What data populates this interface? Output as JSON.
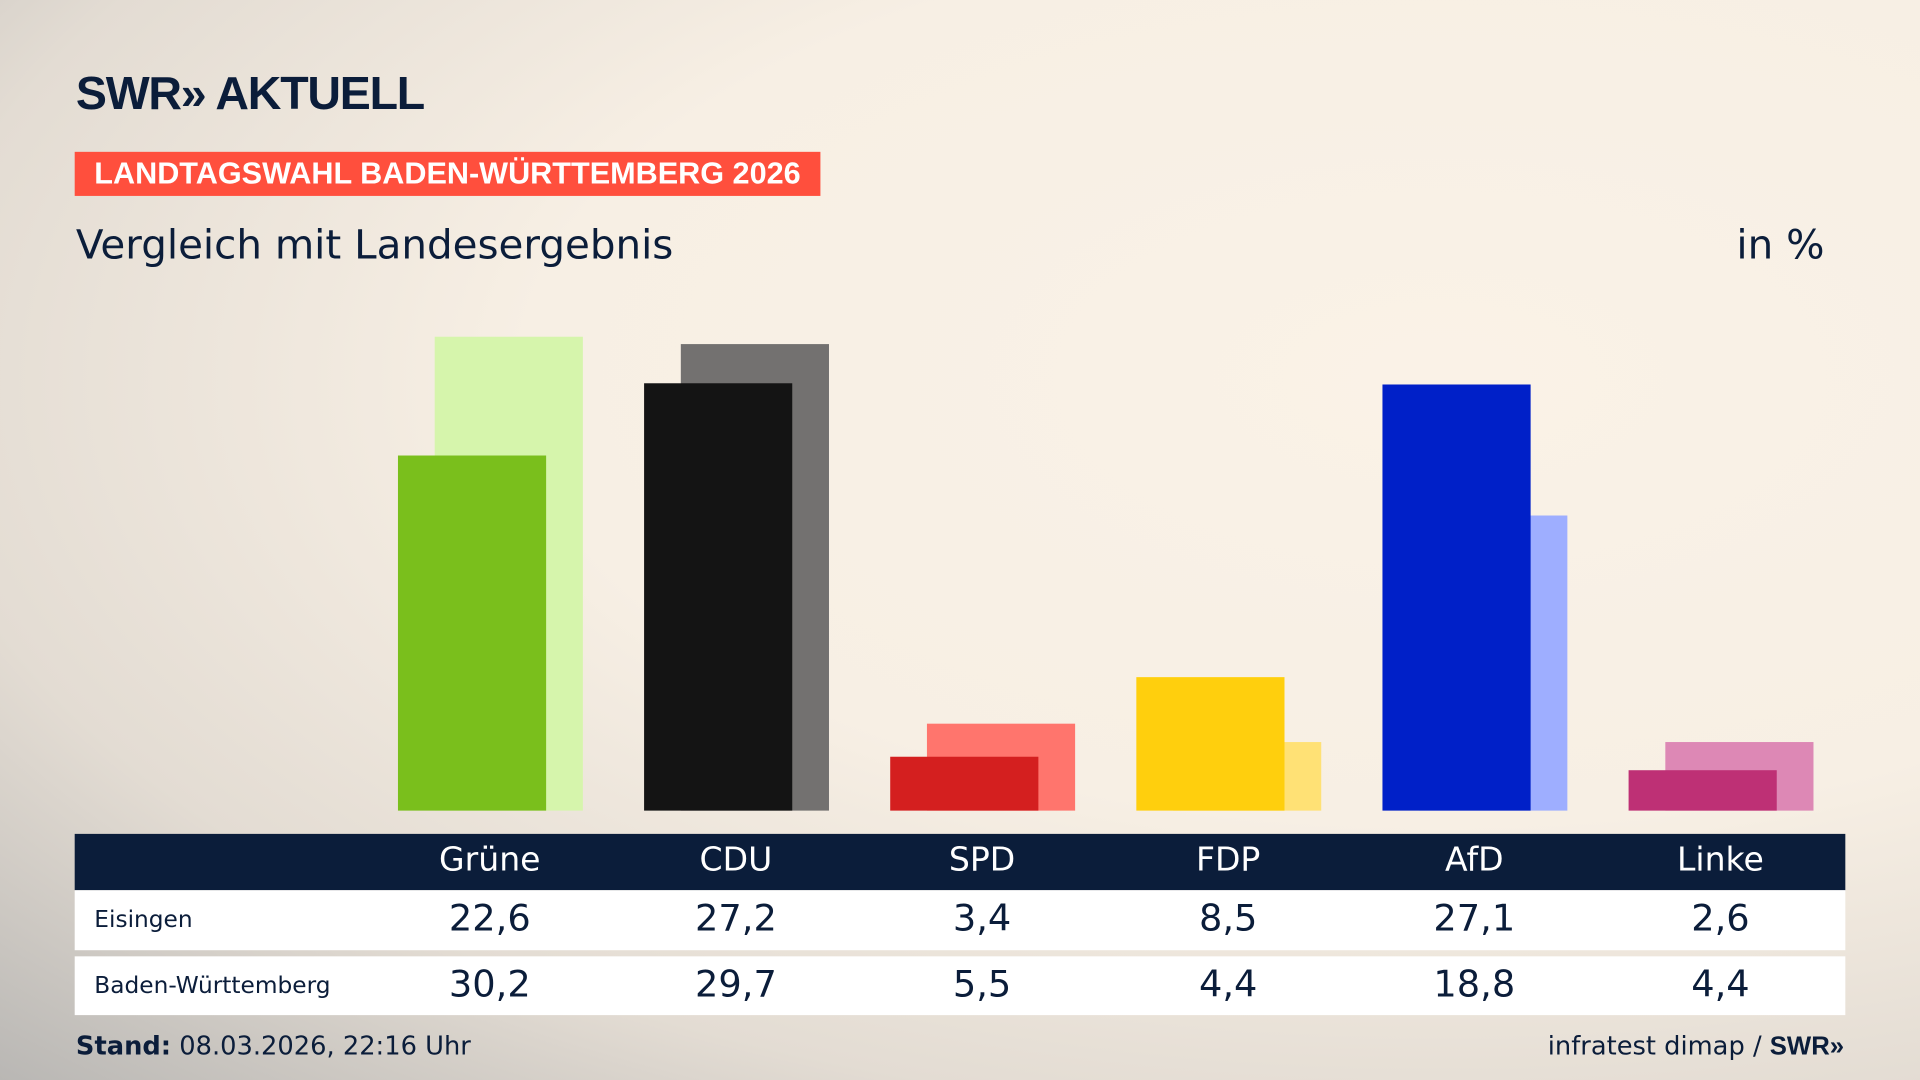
{
  "header": {
    "logo": "SWR» AKTUELL",
    "badge": "LANDTAGSWAHL BADEN-WÜRTTEMBERG 2026",
    "subtitle": "Vergleich mit Landesergebnis",
    "unit": "in %"
  },
  "chart_data": {
    "type": "bar",
    "categories": [
      "Grüne",
      "CDU",
      "SPD",
      "FDP",
      "AfD",
      "Linke"
    ],
    "series": [
      {
        "name": "Eisingen",
        "values": [
          22.6,
          27.2,
          3.4,
          8.5,
          27.1,
          2.6
        ],
        "display": [
          "22,6",
          "27,2",
          "3,4",
          "8,5",
          "27,1",
          "2,6"
        ],
        "colors": [
          "#7abf1c",
          "#141414",
          "#d41f1f",
          "#ffcf0d",
          "#0020c8",
          "#be3075"
        ]
      },
      {
        "name": "Baden-Württemberg",
        "values": [
          30.2,
          29.7,
          5.5,
          4.4,
          18.8,
          4.4
        ],
        "display": [
          "30,2",
          "29,7",
          "5,5",
          "4,4",
          "18,8",
          "4,4"
        ],
        "colors": [
          "#d6f5ac",
          "#737170",
          "#ff756d",
          "#ffe175",
          "#9eaeff",
          "#dd88b5"
        ]
      }
    ],
    "ylim": [
      0,
      30.2
    ],
    "grid": false
  },
  "footer": {
    "stand_label": "Stand:",
    "stand_value": " 08.03.2026, 22:16 Uhr",
    "source": "infratest dimap / ",
    "source_logo": "SWR»"
  }
}
